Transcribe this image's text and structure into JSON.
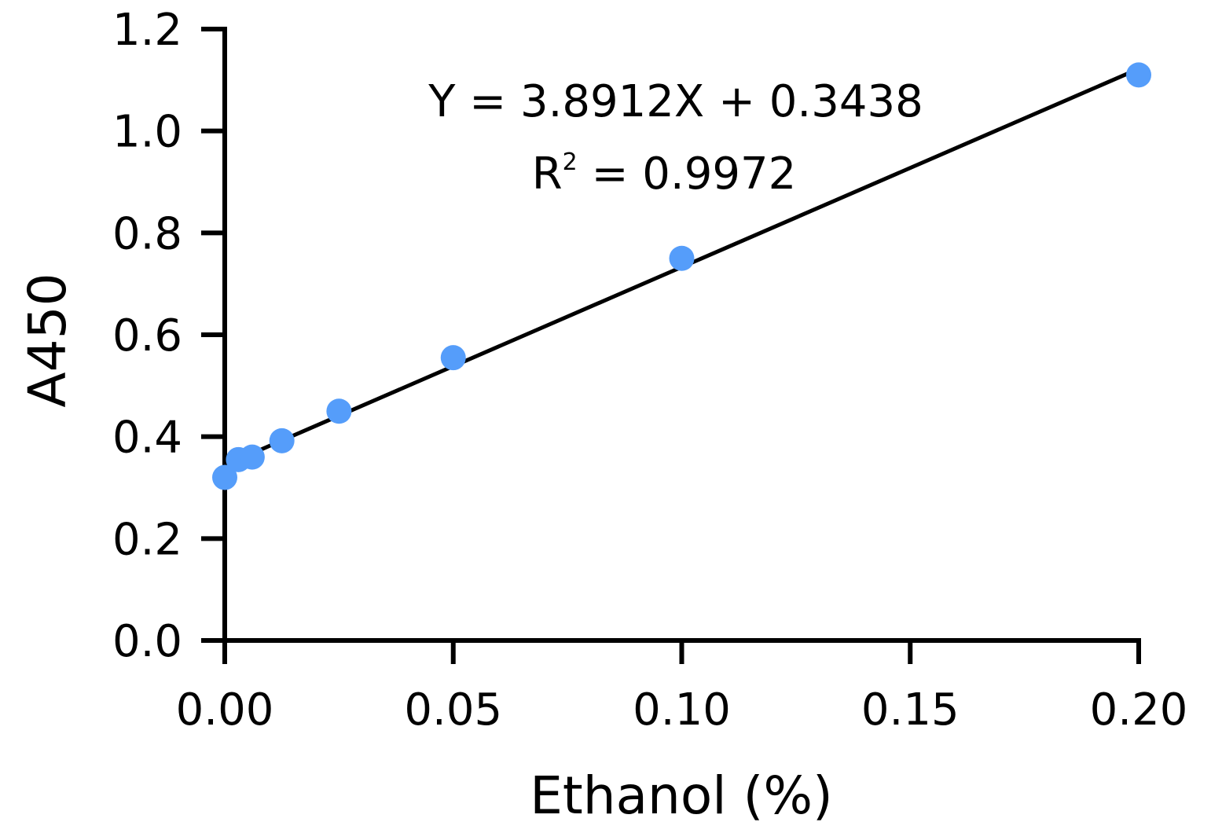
{
  "chart_data": {
    "type": "scatter",
    "xlabel": "Ethanol (%)",
    "ylabel": "A450",
    "xlim": [
      0,
      0.2
    ],
    "ylim": [
      0,
      1.2
    ],
    "x_ticks": [
      "0.00",
      "0.05",
      "0.10",
      "0.15",
      "0.20"
    ],
    "y_ticks": [
      "0.0",
      "0.2",
      "0.4",
      "0.6",
      "0.8",
      "1.0",
      "1.2"
    ],
    "grid": false,
    "points": [
      {
        "x": 0.0,
        "y": 0.32
      },
      {
        "x": 0.003,
        "y": 0.355
      },
      {
        "x": 0.006,
        "y": 0.36
      },
      {
        "x": 0.0125,
        "y": 0.392
      },
      {
        "x": 0.025,
        "y": 0.45
      },
      {
        "x": 0.05,
        "y": 0.555
      },
      {
        "x": 0.1,
        "y": 0.75
      },
      {
        "x": 0.2,
        "y": 1.11
      }
    ],
    "fit": {
      "slope": 3.8912,
      "intercept": 0.3438,
      "x_range": [
        0,
        0.2
      ]
    },
    "annotations": {
      "equation": "Y = 3.8912X + 0.3438",
      "r2_base": "R",
      "r2_sup": "2",
      "r2_rest": " = 0.9972"
    },
    "colors": {
      "points": "#559dfa",
      "line": "#000000",
      "axes": "#000000"
    }
  }
}
